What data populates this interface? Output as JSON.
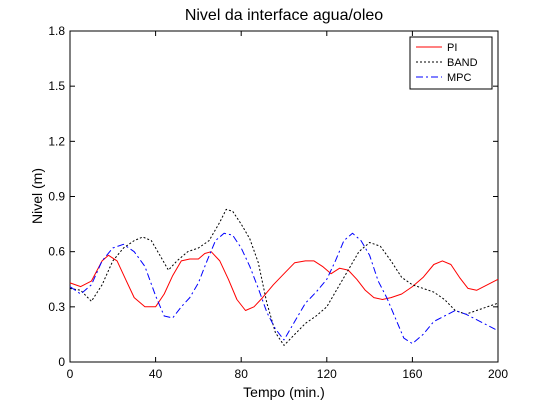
{
  "chart_data": {
    "type": "line",
    "title": "Nivel da interface agua/oleo",
    "xlabel": "Tempo (min.)",
    "ylabel": "Nivel (m)",
    "xlim": [
      0,
      200
    ],
    "ylim": [
      0,
      1.8
    ],
    "xticks": [
      0,
      40,
      80,
      120,
      160,
      200
    ],
    "xtick_labels": [
      "0",
      "40",
      "80",
      "120",
      "160",
      "200"
    ],
    "yticks": [
      0,
      0.3,
      0.6,
      0.9,
      1.2,
      1.5,
      1.8
    ],
    "ytick_labels": [
      "0",
      "0.3",
      "0.6",
      "0.9",
      "1.2",
      "1.5",
      "1.8"
    ],
    "grid": false,
    "legend_position": "top-right",
    "series": [
      {
        "name": "PI",
        "color": "#ff0000",
        "dash": "solid",
        "x": [
          0,
          5,
          10,
          15,
          18,
          22,
          26,
          30,
          35,
          40,
          44,
          48,
          52,
          56,
          60,
          63,
          66,
          70,
          74,
          78,
          82,
          86,
          90,
          95,
          100,
          105,
          110,
          114,
          118,
          122,
          126,
          130,
          134,
          138,
          142,
          146,
          150,
          155,
          160,
          165,
          170,
          174,
          178,
          182,
          186,
          190,
          195,
          200
        ],
        "y": [
          0.43,
          0.41,
          0.44,
          0.55,
          0.58,
          0.55,
          0.45,
          0.35,
          0.3,
          0.3,
          0.37,
          0.47,
          0.55,
          0.56,
          0.56,
          0.59,
          0.6,
          0.55,
          0.45,
          0.34,
          0.28,
          0.3,
          0.35,
          0.42,
          0.48,
          0.54,
          0.55,
          0.55,
          0.52,
          0.48,
          0.51,
          0.5,
          0.45,
          0.39,
          0.35,
          0.34,
          0.35,
          0.37,
          0.41,
          0.46,
          0.53,
          0.55,
          0.53,
          0.46,
          0.4,
          0.39,
          0.42,
          0.45
        ]
      },
      {
        "name": "BAND",
        "color": "#000000",
        "dash": "dotted",
        "x": [
          0,
          5,
          10,
          15,
          20,
          25,
          30,
          34,
          38,
          42,
          46,
          50,
          55,
          60,
          65,
          70,
          73,
          76,
          80,
          84,
          88,
          92,
          96,
          100,
          105,
          110,
          115,
          120,
          125,
          130,
          135,
          140,
          145,
          150,
          155,
          160,
          165,
          170,
          175,
          180,
          185,
          190,
          195,
          200
        ],
        "y": [
          0.4,
          0.39,
          0.33,
          0.42,
          0.55,
          0.62,
          0.66,
          0.68,
          0.66,
          0.58,
          0.5,
          0.55,
          0.6,
          0.62,
          0.66,
          0.76,
          0.83,
          0.82,
          0.75,
          0.67,
          0.54,
          0.32,
          0.16,
          0.09,
          0.15,
          0.21,
          0.25,
          0.3,
          0.4,
          0.5,
          0.6,
          0.65,
          0.63,
          0.55,
          0.46,
          0.42,
          0.4,
          0.38,
          0.34,
          0.28,
          0.26,
          0.28,
          0.3,
          0.32
        ]
      },
      {
        "name": "MPC",
        "color": "#0000ff",
        "dash": "dash-dot",
        "x": [
          0,
          5,
          10,
          15,
          20,
          25,
          30,
          35,
          40,
          44,
          48,
          52,
          56,
          60,
          64,
          68,
          72,
          76,
          80,
          84,
          88,
          92,
          96,
          100,
          105,
          110,
          115,
          120,
          124,
          128,
          132,
          136,
          140,
          144,
          148,
          152,
          156,
          160,
          165,
          170,
          175,
          180,
          185,
          190,
          195,
          200
        ],
        "y": [
          0.41,
          0.37,
          0.42,
          0.55,
          0.62,
          0.64,
          0.6,
          0.52,
          0.36,
          0.25,
          0.24,
          0.3,
          0.35,
          0.43,
          0.55,
          0.66,
          0.7,
          0.69,
          0.62,
          0.52,
          0.4,
          0.27,
          0.18,
          0.12,
          0.22,
          0.32,
          0.38,
          0.45,
          0.55,
          0.66,
          0.7,
          0.66,
          0.58,
          0.44,
          0.35,
          0.24,
          0.13,
          0.1,
          0.15,
          0.22,
          0.25,
          0.28,
          0.26,
          0.23,
          0.2,
          0.17
        ]
      }
    ]
  }
}
